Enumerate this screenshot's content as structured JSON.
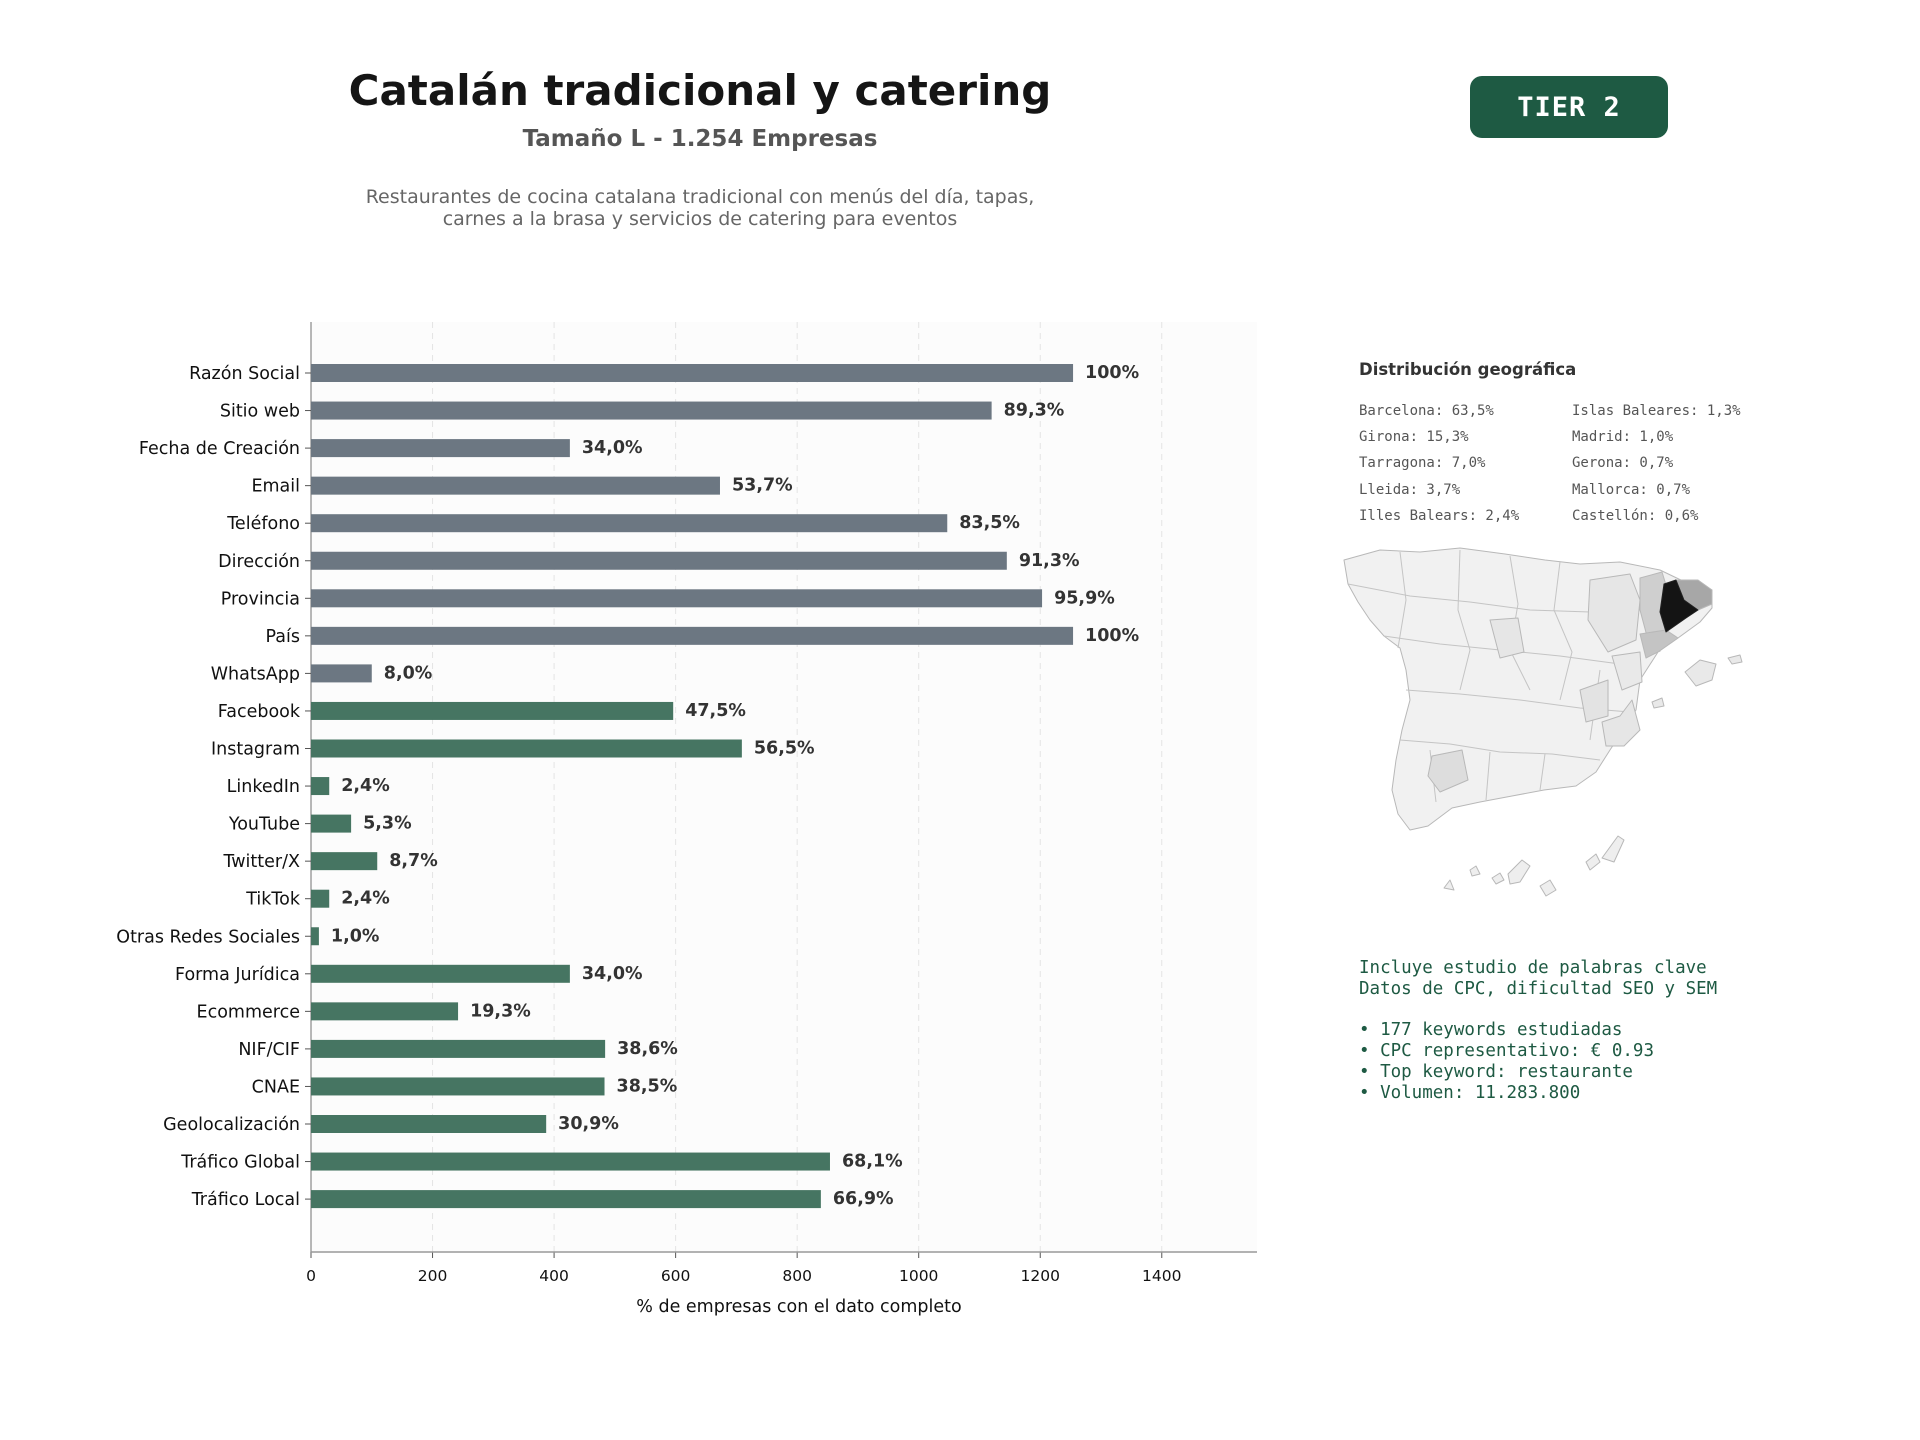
{
  "header": {
    "title": "Catalán tradicional y catering",
    "subtitle": "Tamaño L - 1.254 Empresas",
    "description": [
      "Restaurantes de cocina catalana tradicional con menús del día, tapas,",
      "carnes a la brasa y servicios de catering para eventos"
    ]
  },
  "badge": {
    "label": "TIER 2"
  },
  "colors": {
    "gray_bar": "#6c7782",
    "green_bar": "#467562",
    "badge": "#1e5a43",
    "value_label": "#333333"
  },
  "chart_data": {
    "type": "bar",
    "orientation": "horizontal",
    "xlabel": "% de empresas con el dato completo",
    "xlim": [
      0,
      1570
    ],
    "xticks": [
      0,
      200,
      400,
      600,
      800,
      1000,
      1200,
      1400
    ],
    "grid": "vertical dashed",
    "categories": [
      "Razón Social",
      "Sitio web",
      "Fecha de Creación",
      "Email",
      "Teléfono",
      "Dirección",
      "Provincia",
      "País",
      "WhatsApp",
      "Facebook",
      "Instagram",
      "LinkedIn",
      "YouTube",
      "Twitter/X",
      "TikTok",
      "Otras Redes Sociales",
      "Forma Jurídica",
      "Ecommerce",
      "NIF/CIF",
      "CNAE",
      "Geolocalización",
      "Tráfico Global",
      "Tráfico Local"
    ],
    "values": [
      1254,
      1120,
      426,
      673,
      1047,
      1145,
      1203,
      1254,
      100,
      596,
      709,
      30,
      66,
      109,
      30,
      13,
      426,
      242,
      484,
      483,
      387,
      854,
      839
    ],
    "labels": [
      "100%",
      "89,3%",
      "34,0%",
      "53,7%",
      "83,5%",
      "91,3%",
      "95,9%",
      "100%",
      "8,0%",
      "47,5%",
      "56,5%",
      "2,4%",
      "5,3%",
      "8,7%",
      "2,4%",
      "1,0%",
      "34,0%",
      "19,3%",
      "38,6%",
      "38,5%",
      "30,9%",
      "68,1%",
      "66,9%"
    ],
    "colors": [
      "gray",
      "gray",
      "gray",
      "gray",
      "gray",
      "gray",
      "gray",
      "gray",
      "gray",
      "green",
      "green",
      "green",
      "green",
      "green",
      "green",
      "green",
      "green",
      "green",
      "green",
      "green",
      "green",
      "green",
      "green"
    ]
  },
  "geo": {
    "title": "Distribución geográfica",
    "items": [
      "Barcelona: 63,5%",
      "Islas Baleares: 1,3%",
      "Girona: 15,3%",
      "Madrid: 1,0%",
      "Tarragona: 7,0%",
      "Gerona: 0,7%",
      "Lleida: 3,7%",
      "Mallorca: 0,7%",
      "Illes Balears: 2,4%",
      "Castellón: 0,6%"
    ]
  },
  "keywords": {
    "intro": [
      "Incluye estudio de palabras clave",
      "Datos de CPC, dificultad SEO y SEM"
    ],
    "bullets": [
      "• 177 keywords estudiadas",
      "• CPC representativo: € 0.93",
      "• Top keyword: restaurante",
      "• Volumen: 11.283.800"
    ]
  }
}
